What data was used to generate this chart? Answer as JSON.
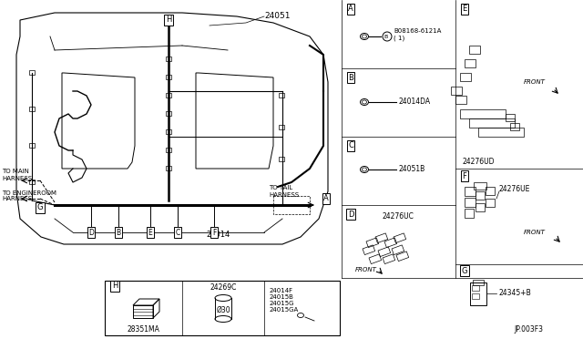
{
  "bg_color": "#ffffff",
  "line_color": "#000000",
  "part_numbers": {
    "main_harness": "24051",
    "floor_harness": "24014",
    "connector_A": "B08168-6121A\n( 1)",
    "connector_B": "24014DA",
    "connector_C": "24051B",
    "connector_D": "24276UC",
    "connector_E": "24276UD",
    "connector_F": "24276UE",
    "connector_G": "24345+B",
    "H_part1": "28351MA",
    "H_part2": "24269C",
    "H_part3": "24014F\n24015B\n24015G\n24015GA",
    "to_main": "TO MAIN\nHARNESS",
    "to_tail": "TO TAIL\nHARNESS",
    "to_engine": "TO ENGINEROOM\nHARNESS",
    "footer": "JP.003F3",
    "front": "FRONT"
  },
  "bottom_labels": [
    "D",
    "B",
    "E",
    "C",
    "F"
  ],
  "diam_label": "Ø30"
}
